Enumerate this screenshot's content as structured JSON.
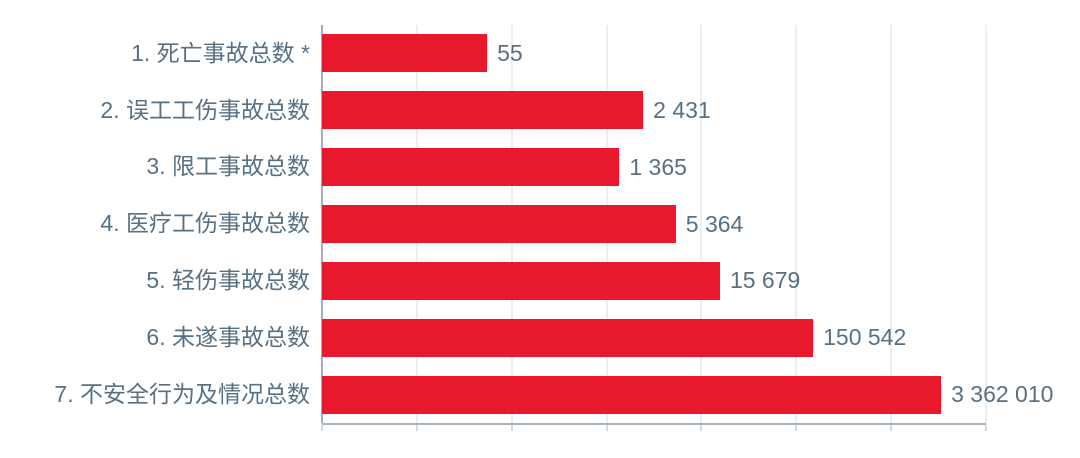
{
  "chart_data": {
    "type": "bar",
    "orientation": "horizontal",
    "title": "",
    "categories": [
      "1. 死亡事故总数 *",
      "2. 误工工伤事故总数",
      "3. 限工事故总数",
      "4. 医疗工伤事故总数",
      "5. 轻伤事故总数",
      "6. 未遂事故总数",
      "7. 不安全行为及情况总数"
    ],
    "values": [
      55,
      2431,
      1365,
      5364,
      15679,
      150542,
      3362010
    ],
    "value_labels": [
      "55",
      "2 431",
      "1 365",
      "5 364",
      "15 679",
      "150 542",
      "3 362 010"
    ],
    "xaxis": {
      "scale": "log10",
      "min": 1,
      "max": 10000000,
      "decades": 7,
      "tick_labels_visible": false
    },
    "yaxis": {
      "labels_visible": true
    },
    "grid": "vertical",
    "legend": "none",
    "colors": {
      "bar": "#e8192c",
      "label_text": "#587083",
      "gridline": "#d9dfe5",
      "axis": "#a6b3bf",
      "background": "#ffffff"
    }
  }
}
